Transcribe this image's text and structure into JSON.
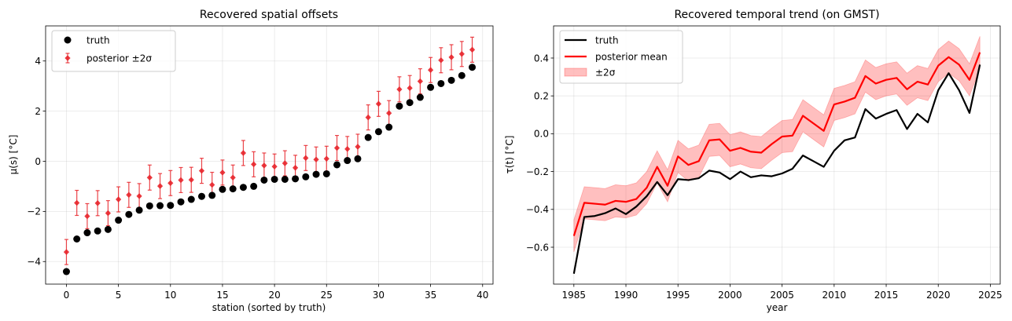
{
  "chart_data": [
    {
      "type": "scatter",
      "title": "Recovered spatial offsets",
      "xlabel": "station (sorted by truth)",
      "ylabel": "μ(s) [°C]",
      "xlim": [
        -2.0,
        41.0
      ],
      "ylim": [
        -4.9,
        5.4
      ],
      "xticks": [
        0,
        5,
        10,
        15,
        20,
        25,
        30,
        35,
        40
      ],
      "yticks": [
        -4,
        -2,
        0,
        2,
        4
      ],
      "ytick_labels": [
        "−4",
        "−2",
        "0",
        "2",
        "4"
      ],
      "grid": true,
      "legend": {
        "position": "top-left",
        "entries": [
          "truth",
          "posterior ±2σ"
        ]
      },
      "series": [
        {
          "name": "truth",
          "color": "#000000",
          "x": [
            0,
            1,
            2,
            3,
            4,
            5,
            6,
            7,
            8,
            9,
            10,
            11,
            12,
            13,
            14,
            15,
            16,
            17,
            18,
            19,
            20,
            21,
            22,
            23,
            24,
            25,
            26,
            27,
            28,
            29,
            30,
            31,
            32,
            33,
            34,
            35,
            36,
            37,
            38,
            39
          ],
          "y": [
            -4.4,
            -3.1,
            -2.85,
            -2.78,
            -2.72,
            -2.35,
            -2.12,
            -1.95,
            -1.78,
            -1.77,
            -1.76,
            -1.62,
            -1.52,
            -1.4,
            -1.36,
            -1.12,
            -1.1,
            -1.04,
            -1.0,
            -0.75,
            -0.72,
            -0.72,
            -0.7,
            -0.62,
            -0.52,
            -0.5,
            -0.14,
            0.03,
            0.1,
            0.95,
            1.18,
            1.36,
            2.2,
            2.34,
            2.55,
            2.95,
            3.1,
            3.23,
            3.42,
            3.75
          ]
        },
        {
          "name": "posterior ±2σ",
          "color": "#e8242a",
          "x": [
            0,
            1,
            2,
            3,
            4,
            5,
            6,
            7,
            8,
            9,
            10,
            11,
            12,
            13,
            14,
            15,
            16,
            17,
            18,
            19,
            20,
            21,
            22,
            23,
            24,
            25,
            26,
            27,
            28,
            29,
            30,
            31,
            32,
            33,
            34,
            35,
            36,
            37,
            38,
            39
          ],
          "y": [
            -3.62,
            -1.66,
            -2.19,
            -1.67,
            -2.07,
            -1.52,
            -1.34,
            -1.39,
            -0.65,
            -0.99,
            -0.87,
            -0.75,
            -0.74,
            -0.38,
            -0.94,
            -0.45,
            -0.65,
            0.33,
            -0.12,
            -0.17,
            -0.21,
            -0.08,
            -0.26,
            0.13,
            0.07,
            0.1,
            0.53,
            0.49,
            0.58,
            1.75,
            2.29,
            1.92,
            2.87,
            2.92,
            3.19,
            3.64,
            4.03,
            4.15,
            4.28,
            4.45
          ],
          "err": [
            0.5,
            0.5,
            0.5,
            0.5,
            0.5,
            0.5,
            0.5,
            0.5,
            0.5,
            0.5,
            0.5,
            0.5,
            0.5,
            0.5,
            0.5,
            0.5,
            0.5,
            0.5,
            0.5,
            0.5,
            0.5,
            0.5,
            0.5,
            0.5,
            0.5,
            0.5,
            0.5,
            0.5,
            0.5,
            0.5,
            0.5,
            0.5,
            0.5,
            0.5,
            0.5,
            0.5,
            0.5,
            0.5,
            0.5,
            0.5
          ]
        }
      ]
    },
    {
      "type": "line",
      "title": "Recovered temporal trend (on GMST)",
      "xlabel": "year",
      "ylabel": "τ(t) [°C]",
      "xlim": [
        1983.05,
        2025.95
      ],
      "ylim": [
        -0.795,
        0.57
      ],
      "xticks": [
        1985,
        1990,
        1995,
        2000,
        2005,
        2010,
        2015,
        2020,
        2025
      ],
      "yticks": [
        -0.6,
        -0.4,
        -0.2,
        0.0,
        0.2,
        0.4
      ],
      "ytick_labels": [
        "−0.6",
        "−0.4",
        "−0.2",
        "0.0",
        "0.2",
        "0.4"
      ],
      "grid": true,
      "legend": {
        "position": "top-left",
        "entries": [
          "truth",
          "posterior mean",
          "±2σ"
        ]
      },
      "x": [
        1985,
        1986,
        1987,
        1988,
        1989,
        1990,
        1991,
        1992,
        1993,
        1994,
        1995,
        1996,
        1997,
        1998,
        1999,
        2000,
        2001,
        2002,
        2003,
        2004,
        2005,
        2006,
        2007,
        2008,
        2009,
        2010,
        2011,
        2012,
        2013,
        2014,
        2015,
        2016,
        2017,
        2018,
        2019,
        2020,
        2021,
        2022,
        2023,
        2024
      ],
      "series": [
        {
          "name": "truth",
          "color": "#000000",
          "values": [
            -0.74,
            -0.44,
            -0.435,
            -0.42,
            -0.395,
            -0.425,
            -0.385,
            -0.33,
            -0.255,
            -0.325,
            -0.24,
            -0.245,
            -0.235,
            -0.195,
            -0.205,
            -0.24,
            -0.2,
            -0.23,
            -0.22,
            -0.225,
            -0.21,
            -0.185,
            -0.115,
            -0.145,
            -0.175,
            -0.09,
            -0.035,
            -0.02,
            0.13,
            0.08,
            0.105,
            0.125,
            0.025,
            0.105,
            0.06,
            0.23,
            0.32,
            0.23,
            0.11,
            0.365
          ]
        },
        {
          "name": "posterior mean",
          "color": "#ff0000",
          "values": [
            -0.54,
            -0.365,
            -0.37,
            -0.375,
            -0.355,
            -0.36,
            -0.345,
            -0.285,
            -0.175,
            -0.275,
            -0.12,
            -0.165,
            -0.145,
            -0.035,
            -0.03,
            -0.09,
            -0.075,
            -0.095,
            -0.1,
            -0.055,
            -0.015,
            -0.01,
            0.095,
            0.055,
            0.015,
            0.155,
            0.17,
            0.19,
            0.305,
            0.265,
            0.285,
            0.295,
            0.235,
            0.275,
            0.26,
            0.36,
            0.405,
            0.365,
            0.285,
            0.43
          ]
        }
      ],
      "band": {
        "name": "±2σ",
        "color": "#ff0000",
        "halfwidth": 0.085
      }
    }
  ]
}
